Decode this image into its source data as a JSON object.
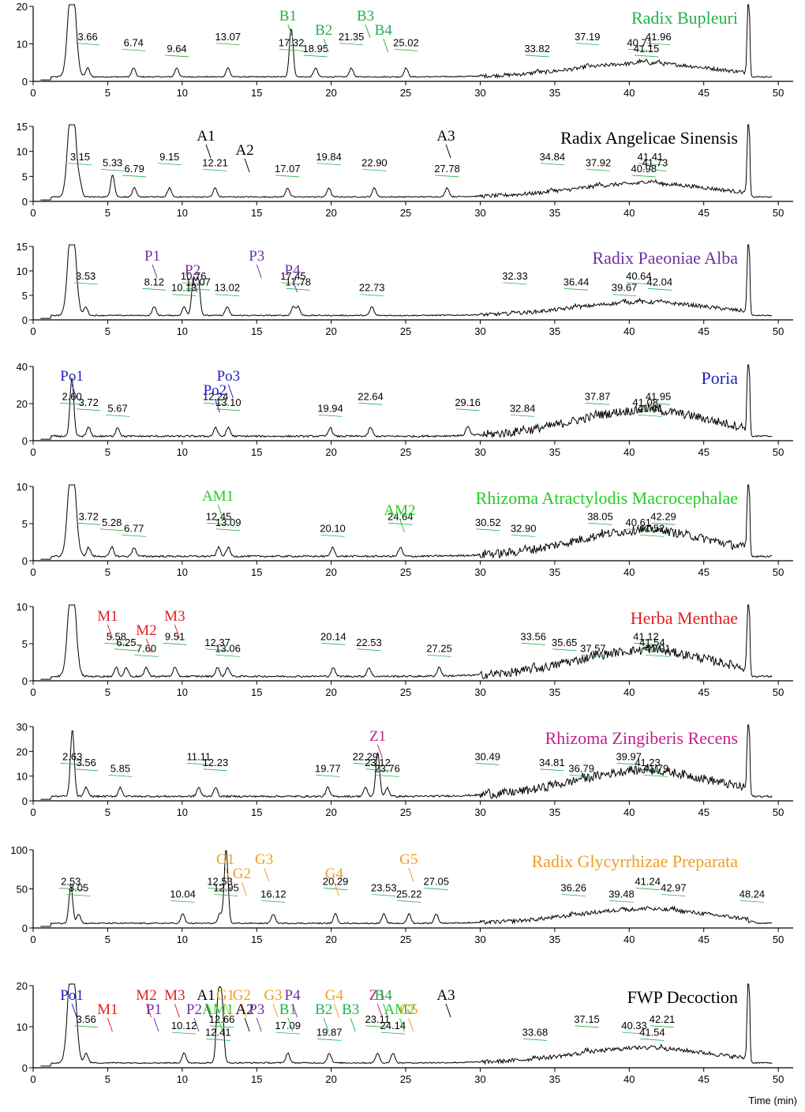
{
  "chart_data": {
    "type": "line",
    "xlabel": "Time (min)",
    "panels": [
      {
        "title": "Radix Bupleuri",
        "title_color": "#22b14c",
        "ylim": [
          0,
          20
        ],
        "yticks": [
          0,
          10,
          20
        ],
        "peaks": [
          3.66,
          6.74,
          9.64,
          13.07,
          17.32,
          18.95,
          21.35,
          25.02,
          33.82,
          37.19,
          40.71,
          41.15,
          41.96
        ],
        "markers": [
          {
            "label": "B1",
            "rt": 17.1,
            "color": "#22b14c"
          },
          {
            "label": "B2",
            "rt": 19.5,
            "color": "#22b14c"
          },
          {
            "label": "B3",
            "rt": 22.3,
            "color": "#22b14c"
          },
          {
            "label": "B4",
            "rt": 23.5,
            "color": "#22b14c"
          }
        ]
      },
      {
        "title": "Radix Angelicae Sinensis",
        "title_color": "#000000",
        "ylim": [
          0,
          15
        ],
        "yticks": [
          0,
          5,
          10,
          15
        ],
        "peaks": [
          3.15,
          5.33,
          6.79,
          9.15,
          12.21,
          17.07,
          19.84,
          22.9,
          27.78,
          34.84,
          37.92,
          40.98,
          41.41,
          41.73
        ],
        "markers": [
          {
            "label": "A1",
            "rt": 11.6,
            "color": "#000000"
          },
          {
            "label": "A2",
            "rt": 14.2,
            "color": "#000000"
          },
          {
            "label": "A3",
            "rt": 27.7,
            "color": "#000000"
          }
        ]
      },
      {
        "title": "Radix Paeoniae Alba",
        "title_color": "#7030a0",
        "ylim": [
          0,
          15
        ],
        "yticks": [
          0,
          5,
          10,
          15
        ],
        "peaks": [
          3.53,
          8.12,
          10.13,
          10.76,
          11.07,
          13.02,
          17.45,
          17.78,
          22.73,
          32.33,
          36.44,
          39.67,
          40.64,
          42.04
        ],
        "markers": [
          {
            "label": "P1",
            "rt": 8.0,
            "color": "#7030a0"
          },
          {
            "label": "P2",
            "rt": 10.7,
            "color": "#7030a0"
          },
          {
            "label": "P3",
            "rt": 15.0,
            "color": "#7030a0"
          },
          {
            "label": "P4",
            "rt": 17.4,
            "color": "#7030a0"
          }
        ]
      },
      {
        "title": "Poria",
        "title_color": "#1f1fbf",
        "ylim": [
          0,
          40
        ],
        "yticks": [
          0,
          20,
          40
        ],
        "peaks": [
          2.6,
          3.72,
          5.67,
          12.24,
          13.1,
          19.94,
          22.64,
          29.16,
          32.84,
          37.87,
          41.08,
          41.41,
          41.95
        ],
        "markers": [
          {
            "label": "Po1",
            "rt": 2.6,
            "color": "#1f1fbf"
          },
          {
            "label": "Po2",
            "rt": 12.2,
            "color": "#1f1fbf"
          },
          {
            "label": "Po3",
            "rt": 13.1,
            "color": "#1f1fbf"
          }
        ]
      },
      {
        "title": "Rhizoma Atractylodis Macrocephalae",
        "title_color": "#22cc22",
        "ylim": [
          0,
          10
        ],
        "yticks": [
          0,
          5,
          10
        ],
        "peaks": [
          3.72,
          5.28,
          6.77,
          12.45,
          13.09,
          20.1,
          24.64,
          30.52,
          32.9,
          38.05,
          40.61,
          41.52,
          42.29
        ],
        "markers": [
          {
            "label": "AM1",
            "rt": 12.4,
            "color": "#22cc22"
          },
          {
            "label": "AM2",
            "rt": 24.6,
            "color": "#22cc22"
          }
        ]
      },
      {
        "title": "Herba Menthae",
        "title_color": "#e02020",
        "ylim": [
          0,
          10
        ],
        "yticks": [
          0,
          5,
          10
        ],
        "peaks": [
          5.58,
          6.25,
          7.6,
          9.51,
          12.37,
          13.06,
          20.14,
          22.53,
          27.25,
          33.56,
          35.65,
          37.57,
          41.12,
          41.54,
          41.91
        ],
        "markers": [
          {
            "label": "M1",
            "rt": 5.0,
            "color": "#e02020"
          },
          {
            "label": "M2",
            "rt": 7.6,
            "color": "#e02020"
          },
          {
            "label": "M3",
            "rt": 9.5,
            "color": "#e02020"
          }
        ]
      },
      {
        "title": "Rhizoma Zingiberis Recens",
        "title_color": "#c0208a",
        "ylim": [
          0,
          30
        ],
        "yticks": [
          0,
          10,
          20,
          30
        ],
        "peaks": [
          2.63,
          3.56,
          5.85,
          11.11,
          12.23,
          19.77,
          22.29,
          23.12,
          23.76,
          30.49,
          34.81,
          36.79,
          39.97,
          41.23,
          41.79
        ],
        "markers": [
          {
            "label": "Z1",
            "rt": 23.12,
            "color": "#c0208a"
          }
        ]
      },
      {
        "title": "Radix Glycyrrhizae Preparata",
        "title_color": "#f39c1a",
        "ylim": [
          0,
          100
        ],
        "yticks": [
          0,
          50,
          100
        ],
        "peaks": [
          2.53,
          3.05,
          10.04,
          12.53,
          12.95,
          16.12,
          20.29,
          23.53,
          25.22,
          27.05,
          36.26,
          39.48,
          41.24,
          42.97,
          48.24
        ],
        "markers": [
          {
            "label": "G1",
            "rt": 12.9,
            "color": "#f39c1a"
          },
          {
            "label": "G2",
            "rt": 14.0,
            "color": "#f39c1a"
          },
          {
            "label": "G3",
            "rt": 15.5,
            "color": "#f39c1a"
          },
          {
            "label": "G4",
            "rt": 20.2,
            "color": "#f39c1a"
          },
          {
            "label": "G5",
            "rt": 25.2,
            "color": "#f39c1a"
          }
        ]
      },
      {
        "title": "FWP Decoction",
        "title_color": "#000000",
        "ylim": [
          0,
          20
        ],
        "yticks": [
          0,
          10,
          20
        ],
        "peaks": [
          3.56,
          10.12,
          12.41,
          12.66,
          17.09,
          19.87,
          23.11,
          24.14,
          33.68,
          37.15,
          40.33,
          41.54,
          42.21
        ],
        "markers": [
          {
            "label": "Po1",
            "rt": 2.6,
            "color": "#1f1fbf"
          },
          {
            "label": "M1",
            "rt": 5.0,
            "color": "#e02020"
          },
          {
            "label": "M2",
            "rt": 7.6,
            "color": "#e02020"
          },
          {
            "label": "P1",
            "rt": 8.1,
            "color": "#7030a0"
          },
          {
            "label": "M3",
            "rt": 9.5,
            "color": "#e02020"
          },
          {
            "label": "P2",
            "rt": 10.8,
            "color": "#7030a0"
          },
          {
            "label": "A1",
            "rt": 11.6,
            "color": "#000000"
          },
          {
            "label": "AM1",
            "rt": 12.4,
            "color": "#22cc22"
          },
          {
            "label": "G1",
            "rt": 12.9,
            "color": "#f39c1a"
          },
          {
            "label": "A2",
            "rt": 14.2,
            "color": "#000000"
          },
          {
            "label": "G2",
            "rt": 14.0,
            "color": "#f39c1a"
          },
          {
            "label": "P3",
            "rt": 15.0,
            "color": "#7030a0"
          },
          {
            "label": "G3",
            "rt": 16.1,
            "color": "#f39c1a"
          },
          {
            "label": "B1",
            "rt": 17.1,
            "color": "#22b14c"
          },
          {
            "label": "P4",
            "rt": 17.4,
            "color": "#7030a0"
          },
          {
            "label": "B2",
            "rt": 19.5,
            "color": "#22b14c"
          },
          {
            "label": "G4",
            "rt": 20.2,
            "color": "#f39c1a"
          },
          {
            "label": "B3",
            "rt": 21.3,
            "color": "#22b14c"
          },
          {
            "label": "Z1",
            "rt": 23.1,
            "color": "#c0208a"
          },
          {
            "label": "AM2",
            "rt": 24.6,
            "color": "#22cc22"
          },
          {
            "label": "B4",
            "rt": 23.5,
            "color": "#22b14c"
          },
          {
            "label": "G5",
            "rt": 25.2,
            "color": "#f39c1a"
          },
          {
            "label": "A3",
            "rt": 27.7,
            "color": "#000000"
          }
        ]
      }
    ],
    "xlim": [
      0,
      51
    ],
    "xticks": [
      0,
      5,
      10,
      15,
      20,
      25,
      30,
      35,
      40,
      45,
      50
    ]
  }
}
